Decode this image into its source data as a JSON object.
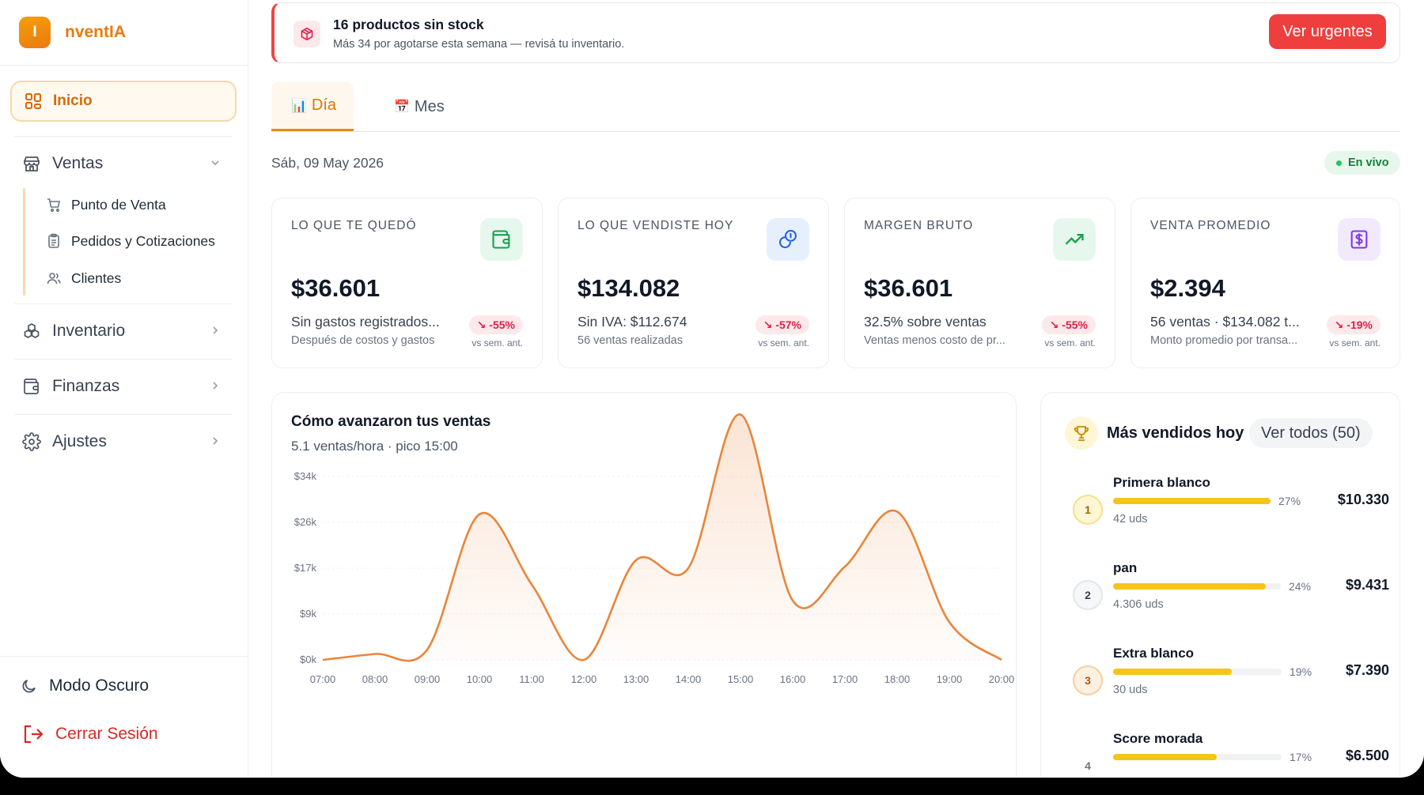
{
  "brand": {
    "logo_letter": "I",
    "name": "nventIA",
    "accent": "#ea7a10"
  },
  "sidebar": {
    "inicio": "Inicio",
    "ventas": "Ventas",
    "ventas_sub": [
      "Punto de Venta",
      "Pedidos y Cotizaciones",
      "Clientes"
    ],
    "inventario": "Inventario",
    "finanzas": "Finanzas",
    "ajustes": "Ajustes",
    "dark_mode": "Modo Oscuro",
    "logout": "Cerrar Sesión"
  },
  "alert": {
    "title": "16 productos sin stock",
    "subtitle": "Más 34 por agotarse esta semana — revisá tu inventario.",
    "button": "Ver urgentes"
  },
  "tabs": [
    {
      "icon": "📊",
      "label": "Día"
    },
    {
      "icon": "📅",
      "label": "Mes"
    }
  ],
  "date": "Sáb, 09 May 2026",
  "live_label": "En vivo",
  "kpis": [
    {
      "label": "LO QUE TE QUEDÓ",
      "value": "$36.601",
      "line1": "Sin gastos registrados...",
      "line2": "Después de costos y gastos",
      "badge": "↘ -55%",
      "vs": "vs sem. ant.",
      "icon": "wallet-icon",
      "icon_bg": "#e6f7ee",
      "icon_color": "#16a34a"
    },
    {
      "label": "LO QUE VENDISTE HOY",
      "value": "$134.082",
      "line1": "Sin IVA: $112.674",
      "line2": "56 ventas realizadas",
      "badge": "↘ -57%",
      "vs": "vs sem. ant.",
      "icon": "coins-icon",
      "icon_bg": "#e6effd",
      "icon_color": "#2563eb"
    },
    {
      "label": "MARGEN BRUTO",
      "value": "$36.601",
      "line1": "32.5% sobre ventas",
      "line2": "Ventas menos costo de pr...",
      "badge": "↘ -55%",
      "vs": "vs sem. ant.",
      "icon": "trend-up-icon",
      "icon_bg": "#e6f7ee",
      "icon_color": "#16a34a"
    },
    {
      "label": "VENTA PROMEDIO",
      "value": "$2.394",
      "line1": "56 ventas · $134.082 t...",
      "line2": "Monto promedio por transa...",
      "badge": "↘ -19%",
      "vs": "vs sem. ant.",
      "icon": "dollar-receipt-icon",
      "icon_bg": "#f1eafd",
      "icon_color": "#7c3aed"
    }
  ],
  "chart": {
    "title": "Cómo avanzaron tus ventas",
    "subtitle": "5.1 ventas/hora · pico 15:00"
  },
  "chart_data": {
    "type": "area",
    "x": [
      "07:00",
      "08:00",
      "09:00",
      "10:00",
      "11:00",
      "12:00",
      "13:00",
      "14:00",
      "15:00",
      "16:00",
      "17:00",
      "18:00",
      "19:00",
      "20:00"
    ],
    "values": [
      0,
      1100,
      1900,
      27000,
      14000,
      0,
      18500,
      17000,
      45500,
      11000,
      17300,
      27500,
      7000,
      0
    ],
    "yticks": [
      "$0k",
      "$9k",
      "$17k",
      "$26k",
      "$34k"
    ],
    "ylim": [
      0,
      34000
    ],
    "color": "#e9853a",
    "grid": true
  },
  "top": {
    "title": "Más vendidos hoy",
    "view_all": "Ver todos (50)",
    "products": [
      {
        "rank": "1",
        "name": "Primera blanco",
        "pct": 27,
        "pct_label": "27%",
        "amount": "$10.330",
        "units": "42 uds",
        "rank_bg": "#fef6d4",
        "rank_border": "#f5e18a",
        "rank_color": "#a16207"
      },
      {
        "rank": "2",
        "name": "pan",
        "pct": 24,
        "pct_label": "24%",
        "amount": "$9.431",
        "units": "4.306 uds",
        "rank_bg": "#f6f7f9",
        "rank_border": "#e2e5ea",
        "rank_color": "#374151"
      },
      {
        "rank": "3",
        "name": "Extra blanco",
        "pct": 19,
        "pct_label": "19%",
        "amount": "$7.390",
        "units": "30 uds",
        "rank_bg": "#fdf0e0",
        "rank_border": "#f5cf9f",
        "rank_color": "#b45309"
      },
      {
        "rank": "4",
        "name": "Score morada",
        "pct": 17,
        "pct_label": "17%",
        "amount": "$6.500",
        "units": "",
        "rank_bg": "#ffffff",
        "rank_border": "#ffffff",
        "rank_color": "#6b7280"
      }
    ]
  }
}
